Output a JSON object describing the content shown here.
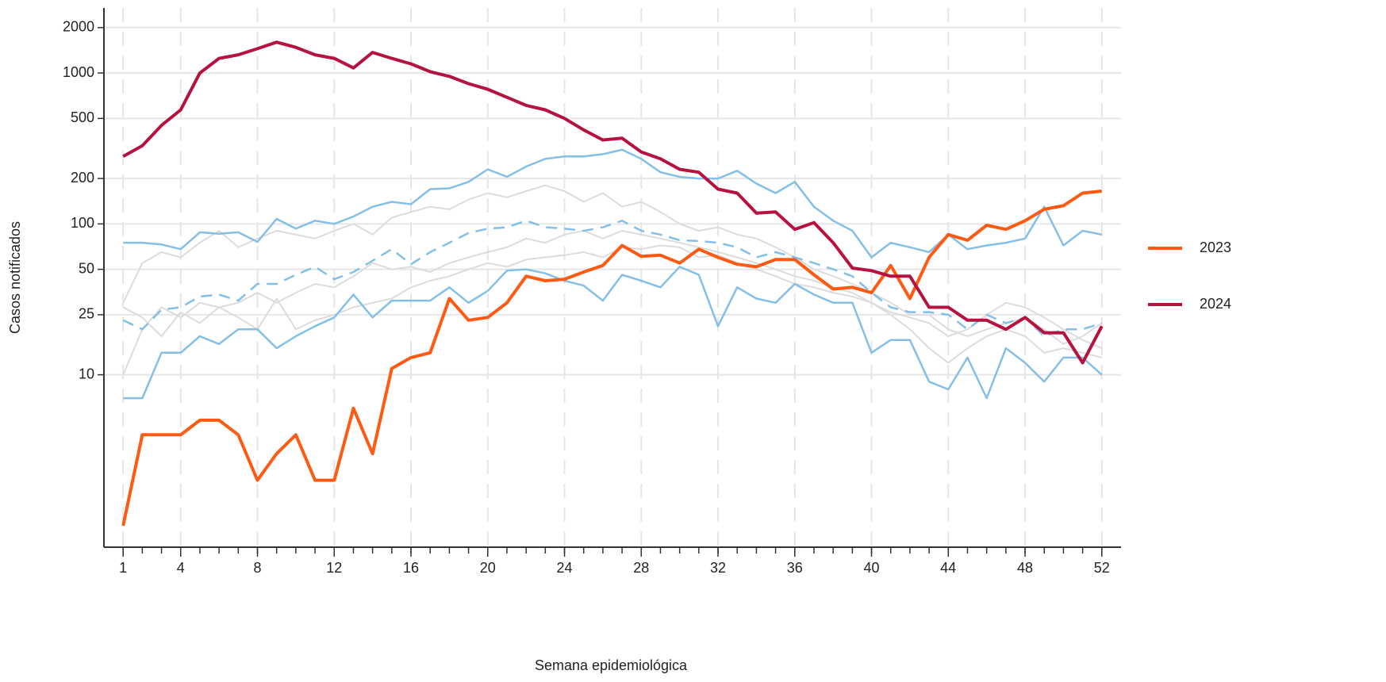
{
  "chart_data": {
    "type": "line",
    "x_label": "Semana epidemiológica",
    "y_label": "Casos notificados",
    "log_scale_y": true,
    "grid": true,
    "legend_position": "right",
    "x": [
      1,
      2,
      3,
      4,
      5,
      6,
      7,
      8,
      9,
      10,
      11,
      12,
      13,
      14,
      15,
      16,
      17,
      18,
      19,
      20,
      21,
      22,
      23,
      24,
      25,
      26,
      27,
      28,
      29,
      30,
      31,
      32,
      33,
      34,
      35,
      36,
      37,
      38,
      39,
      40,
      41,
      42,
      43,
      44,
      45,
      46,
      47,
      48,
      49,
      50,
      51,
      52
    ],
    "xlim": [
      0,
      53
    ],
    "xticks": [
      1,
      4,
      8,
      12,
      16,
      20,
      24,
      28,
      32,
      36,
      40,
      44,
      48,
      52
    ],
    "ylim": [
      0.72,
      2700
    ],
    "yticks": [
      10,
      25,
      50,
      100,
      200,
      500,
      1000,
      2000
    ],
    "series": [
      {
        "color": "#dcdcdc",
        "linestyle": "solid",
        "linewidth": 2,
        "values": [
          30,
          55,
          65,
          60,
          75,
          90,
          70,
          80,
          90,
          85,
          80,
          90,
          100,
          85,
          110,
          120,
          130,
          125,
          145,
          160,
          150,
          165,
          180,
          165,
          140,
          160,
          130,
          140,
          120,
          100,
          90,
          95,
          85,
          80,
          70,
          60,
          50,
          45,
          40,
          35,
          30,
          25,
          25,
          20,
          18,
          20,
          22,
          24,
          20,
          16,
          18,
          22
        ]
      },
      {
        "color": "#dcdcdc",
        "linestyle": "solid",
        "linewidth": 2,
        "values": [
          10,
          20,
          28,
          24,
          30,
          28,
          30,
          35,
          30,
          35,
          40,
          38,
          45,
          55,
          50,
          52,
          48,
          55,
          60,
          65,
          70,
          80,
          75,
          85,
          90,
          80,
          90,
          85,
          80,
          75,
          70,
          65,
          60,
          55,
          50,
          45,
          42,
          38,
          35,
          30,
          26,
          24,
          22,
          18,
          20,
          25,
          30,
          28,
          24,
          20,
          17,
          15
        ]
      },
      {
        "color": "#dcdcdc",
        "linestyle": "solid",
        "linewidth": 2,
        "values": [
          28,
          24,
          18,
          26,
          22,
          28,
          24,
          20,
          32,
          20,
          23,
          25,
          28,
          30,
          32,
          38,
          42,
          45,
          50,
          55,
          52,
          58,
          60,
          62,
          65,
          60,
          70,
          68,
          72,
          70,
          60,
          62,
          55,
          50,
          45,
          40,
          38,
          35,
          33,
          30,
          25,
          20,
          15,
          12,
          15,
          18,
          20,
          18,
          14,
          15,
          14,
          13
        ]
      },
      {
        "color": "#85bfe6",
        "linestyle": "solid",
        "linewidth": 2.5,
        "values": [
          75,
          75,
          73,
          68,
          88,
          86,
          88,
          76,
          108,
          93,
          105,
          100,
          112,
          130,
          140,
          135,
          170,
          172,
          190,
          230,
          205,
          240,
          270,
          280,
          280,
          290,
          310,
          270,
          220,
          205,
          200,
          200,
          225,
          185,
          160,
          190,
          130,
          105,
          90,
          60,
          75,
          70,
          65,
          85,
          68,
          72,
          75,
          80,
          130,
          72,
          90,
          85
        ]
      },
      {
        "color": "#85bfe6",
        "linestyle": "solid",
        "linewidth": 2.5,
        "values": [
          7,
          7,
          14,
          14,
          18,
          16,
          20,
          20,
          15,
          18,
          21,
          24,
          34,
          24,
          31,
          31,
          31,
          38,
          30,
          36,
          49,
          50,
          47,
          42,
          39,
          31,
          46,
          42,
          38,
          52,
          46,
          21,
          38,
          32,
          30,
          40,
          34,
          30,
          30,
          14,
          17,
          17,
          9,
          8,
          13,
          7,
          15,
          12,
          9,
          13,
          13,
          10
        ]
      },
      {
        "color": "#85bfe6",
        "linestyle": "dashed",
        "linewidth": 2.5,
        "values": [
          23,
          20,
          27,
          28,
          33,
          34,
          31,
          40,
          40,
          46,
          52,
          43,
          48,
          57,
          68,
          54,
          65,
          75,
          87,
          93,
          95,
          105,
          95,
          93,
          90,
          95,
          105,
          90,
          85,
          78,
          77,
          75,
          70,
          60,
          65,
          60,
          55,
          50,
          45,
          35,
          28,
          26,
          26,
          25,
          20,
          25,
          22,
          24,
          18,
          20,
          20,
          22
        ]
      },
      {
        "name": "2023",
        "color": "#ff5a14",
        "linestyle": "solid",
        "linewidth": 4,
        "values": [
          1,
          4,
          4,
          4,
          5,
          5,
          4,
          2,
          3,
          4,
          2,
          2,
          6,
          3,
          11,
          13,
          14,
          32,
          23,
          24,
          30,
          45,
          42,
          43,
          48,
          53,
          72,
          61,
          62,
          55,
          68,
          60,
          54,
          52,
          58,
          58,
          46,
          37,
          38,
          35,
          53,
          32,
          60,
          85,
          78,
          98,
          92,
          105,
          125,
          132,
          160,
          165
        ]
      },
      {
        "name": "2024",
        "color": "#b5123f",
        "linestyle": "solid",
        "linewidth": 4,
        "values": [
          280,
          330,
          450,
          570,
          1000,
          1250,
          1320,
          1450,
          1600,
          1480,
          1320,
          1250,
          1080,
          1370,
          1250,
          1150,
          1020,
          950,
          850,
          780,
          690,
          610,
          570,
          500,
          420,
          360,
          370,
          300,
          270,
          230,
          220,
          170,
          160,
          118,
          120,
          92,
          102,
          75,
          51,
          49,
          45,
          45,
          28,
          28,
          23,
          23,
          20,
          24,
          19,
          19,
          12,
          21
        ]
      }
    ]
  }
}
